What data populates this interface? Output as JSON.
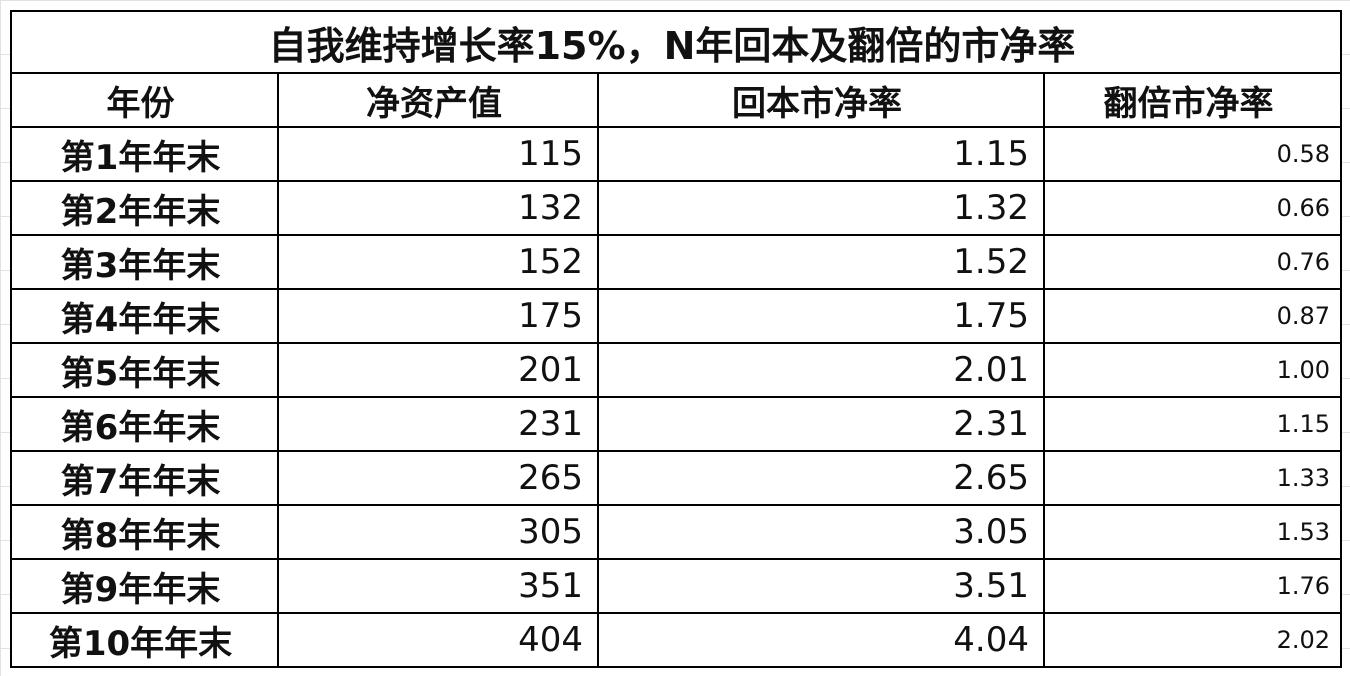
{
  "table": {
    "title": "自我维持增长率15%，N年回本及翻倍的市净率",
    "header": [
      "年份",
      "净资产值",
      "回本市净率",
      "翻倍市净率"
    ],
    "rows": [
      [
        "第1年年末",
        "115",
        "1.15",
        "0.58"
      ],
      [
        "第2年年末",
        "132",
        "1.32",
        "0.66"
      ],
      [
        "第3年年末",
        "152",
        "1.52",
        "0.76"
      ],
      [
        "第4年年末",
        "175",
        "1.75",
        "0.87"
      ],
      [
        "第5年年末",
        "201",
        "2.01",
        "1.00"
      ],
      [
        "第6年年末",
        "231",
        "2.31",
        "1.15"
      ],
      [
        "第7年年末",
        "265",
        "2.65",
        "1.33"
      ],
      [
        "第8年年末",
        "305",
        "3.05",
        "1.53"
      ],
      [
        "第9年年末",
        "351",
        "3.51",
        "1.76"
      ],
      [
        "第10年年末",
        "404",
        "4.04",
        "2.02"
      ]
    ]
  }
}
